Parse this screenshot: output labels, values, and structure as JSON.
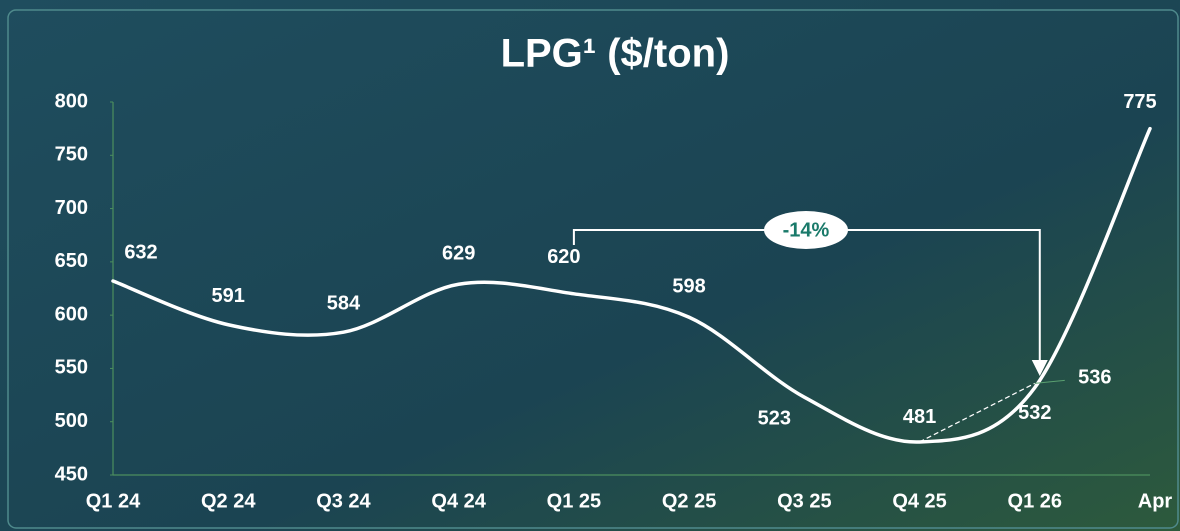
{
  "chart_data": {
    "type": "line",
    "title": "LPG¹ ($/ton)",
    "categories": [
      "Q1 24",
      "Q2 24",
      "Q3 24",
      "Q4 24",
      "Q1 25",
      "Q2 25",
      "Q3 25",
      "Q4 25",
      "Q1 26",
      "Apr"
    ],
    "values": [
      632,
      591,
      584,
      629,
      620,
      598,
      523,
      481,
      532,
      775
    ],
    "dashed_values": [
      null,
      null,
      null,
      null,
      null,
      null,
      null,
      481,
      536,
      null
    ],
    "color": "#ffffff",
    "ylim": [
      450,
      800
    ],
    "yticks": [
      450,
      500,
      550,
      600,
      650,
      700,
      750,
      800
    ],
    "annotation": "-14%",
    "grid": false
  }
}
